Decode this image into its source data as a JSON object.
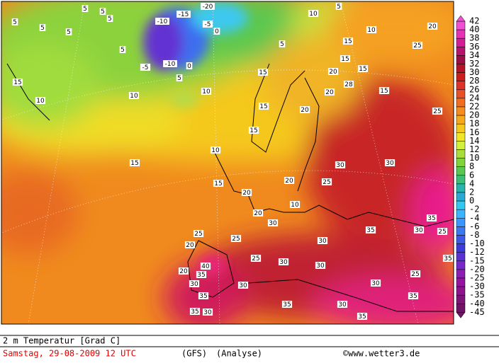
{
  "map": {
    "labels": [
      "5",
      "5",
      "5",
      "5",
      "5",
      "5",
      "5",
      "-10",
      "-15",
      "-20",
      "-5",
      "0",
      "-5",
      "-10",
      "0",
      "5",
      "10",
      "10",
      "10",
      "5",
      "10",
      "5",
      "10",
      "15",
      "20",
      "15",
      "15",
      "20",
      "28",
      "15",
      "20",
      "25",
      "15",
      "15",
      "20",
      "15",
      "10",
      "15",
      "15",
      "20",
      "25",
      "30",
      "30",
      "25",
      "20",
      "10",
      "20",
      "30",
      "25",
      "20",
      "25",
      "40",
      "35",
      "20",
      "25",
      "30",
      "35",
      "30",
      "35",
      "30",
      "35",
      "30",
      "35",
      "35",
      "25",
      "30",
      "30",
      "30",
      "35",
      "30",
      "35",
      "25",
      "35",
      "30",
      "15"
    ]
  },
  "colorbar": {
    "labels": [
      "42",
      "40",
      "38",
      "36",
      "34",
      "32",
      "30",
      "28",
      "26",
      "24",
      "22",
      "20",
      "18",
      "16",
      "14",
      "12",
      "10",
      "8",
      "6",
      "4",
      "2",
      "0",
      "-2",
      "-4",
      "-6",
      "-8",
      "-10",
      "-12",
      "-15",
      "-20",
      "-25",
      "-30",
      "-35",
      "-40",
      "-45"
    ]
  },
  "footer": {
    "title": "2 m Temperatur [Grad C]",
    "date": "Samstag, 29-08-2009  12 UTC",
    "model": "(GFS)",
    "run": "(Analyse)",
    "credit": "©www.wetter3.de"
  }
}
